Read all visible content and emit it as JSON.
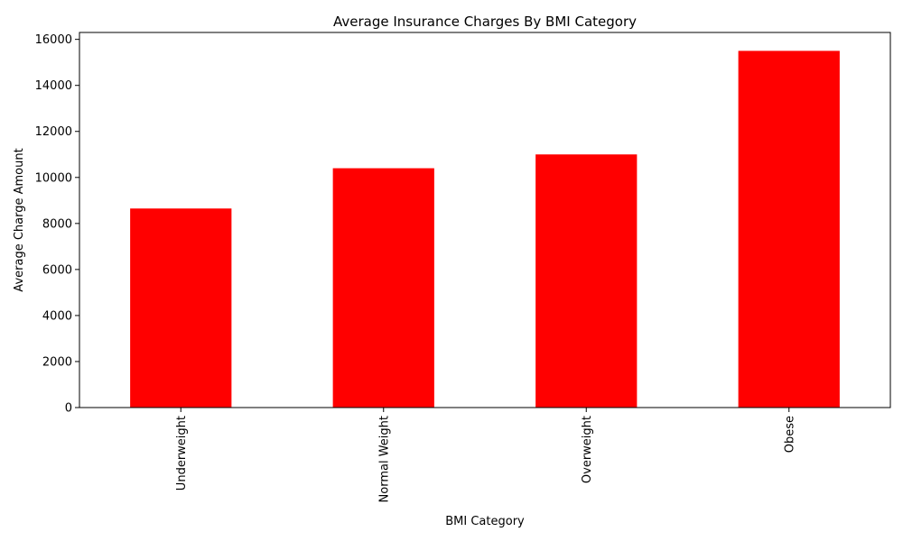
{
  "chart_data": {
    "type": "bar",
    "title": "Average Insurance Charges By BMI Category",
    "xlabel": "BMI Category",
    "ylabel": "Average Charge Amount",
    "categories": [
      "Underweight",
      "Normal Weight",
      "Overweight",
      "Obese"
    ],
    "values": [
      8650,
      10400,
      11000,
      15500
    ],
    "ylim": [
      0,
      16300
    ],
    "yticks": [
      0,
      2000,
      4000,
      6000,
      8000,
      10000,
      12000,
      14000,
      16000
    ],
    "bar_color": "#ff0000",
    "grid": false,
    "legend": "none"
  }
}
